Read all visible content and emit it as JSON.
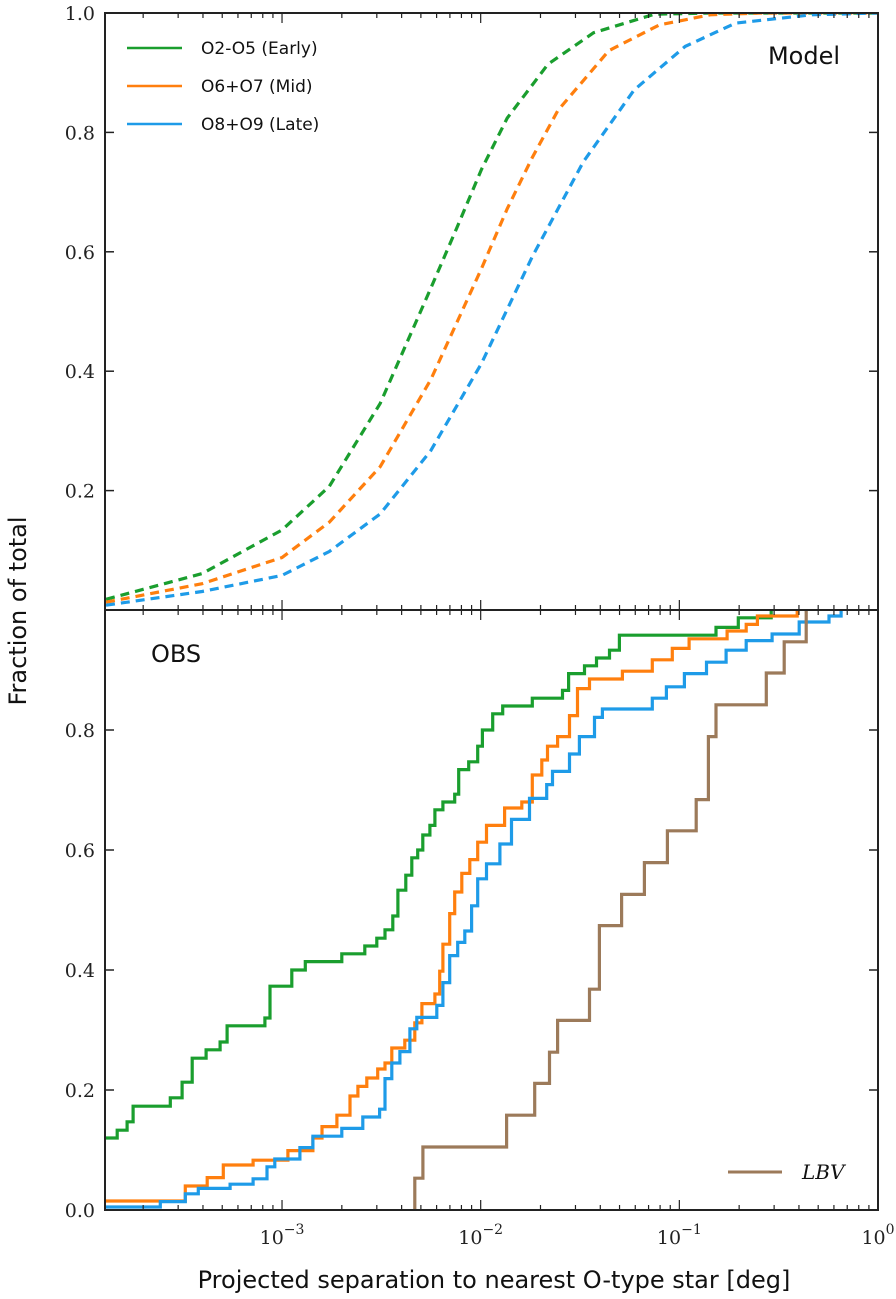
{
  "chart_data": [
    {
      "type": "line",
      "panel_label": "Model",
      "xscale": "log",
      "xlim": [
        0.0001285,
        1
      ],
      "ylim": [
        0,
        1
      ],
      "yticks": [
        0.2,
        0.4,
        0.6,
        0.8,
        1.0
      ],
      "ytick_labels": [
        "0.2",
        "0.4",
        "0.6",
        "0.8",
        "1.0"
      ],
      "line_style": "dashed",
      "legend_placement": "top-left",
      "series": [
        {
          "name": "O2-O5 (Early)",
          "color": "#1a9e2e",
          "points": [
            [
              0.00013,
              0.018
            ],
            [
              0.000396,
              0.061
            ],
            [
              0.001,
              0.134
            ],
            [
              0.00173,
              0.207
            ],
            [
              0.00312,
              0.346
            ],
            [
              0.00561,
              0.539
            ],
            [
              0.00754,
              0.638
            ],
            [
              0.0101,
              0.738
            ],
            [
              0.0136,
              0.824
            ],
            [
              0.0218,
              0.914
            ],
            [
              0.037,
              0.967
            ],
            [
              0.075,
              0.998
            ],
            [
              0.143,
              1.0
            ],
            [
              1.0,
              1.0
            ]
          ]
        },
        {
          "name": "O6+O7 (Mid)",
          "color": "#ff7f0e",
          "points": [
            [
              0.00013,
              0.013
            ],
            [
              0.000396,
              0.044
            ],
            [
              0.001,
              0.088
            ],
            [
              0.00173,
              0.147
            ],
            [
              0.00312,
              0.24
            ],
            [
              0.00561,
              0.386
            ],
            [
              0.0101,
              0.572
            ],
            [
              0.0136,
              0.672
            ],
            [
              0.0182,
              0.758
            ],
            [
              0.0245,
              0.837
            ],
            [
              0.0442,
              0.937
            ],
            [
              0.0794,
              0.98
            ],
            [
              0.143,
              0.997
            ],
            [
              0.258,
              1.0
            ],
            [
              1.0,
              1.0
            ]
          ]
        },
        {
          "name": "O8+O9 (Late)",
          "color": "#1e9be8",
          "points": [
            [
              0.00013,
              0.008
            ],
            [
              0.000396,
              0.031
            ],
            [
              0.001,
              0.058
            ],
            [
              0.00173,
              0.098
            ],
            [
              0.00312,
              0.161
            ],
            [
              0.00561,
              0.267
            ],
            [
              0.0101,
              0.413
            ],
            [
              0.0182,
              0.592
            ],
            [
              0.0329,
              0.751
            ],
            [
              0.0592,
              0.871
            ],
            [
              0.107,
              0.944
            ],
            [
              0.192,
              0.983
            ],
            [
              0.465,
              0.997
            ],
            [
              1.0,
              1.0
            ]
          ]
        }
      ]
    },
    {
      "type": "line",
      "step": "post",
      "panel_label": "OBS",
      "xscale": "log",
      "xlim": [
        0.0001285,
        1
      ],
      "ylim": [
        0,
        1
      ],
      "yticks": [
        0.0,
        0.2,
        0.4,
        0.6,
        0.8
      ],
      "ytick_labels": [
        "0.0",
        "0.2",
        "0.4",
        "0.6",
        "0.8"
      ],
      "legend_placement": "bottom-right",
      "series": [
        {
          "color": "#1a9e2e",
          "points": [
            [
              0.0001285,
              0.12
            ],
            [
              0.000148,
              0.133
            ],
            [
              0.000166,
              0.147
            ],
            [
              0.000178,
              0.173
            ],
            [
              0.000274,
              0.187
            ],
            [
              0.000314,
              0.213
            ],
            [
              0.000353,
              0.253
            ],
            [
              0.000415,
              0.267
            ],
            [
              0.000488,
              0.28
            ],
            [
              0.000529,
              0.307
            ],
            [
              0.00082,
              0.32
            ],
            [
              0.00087,
              0.373
            ],
            [
              0.00112,
              0.4
            ],
            [
              0.00131,
              0.414
            ],
            [
              0.002,
              0.427
            ],
            [
              0.00261,
              0.44
            ],
            [
              0.003,
              0.453
            ],
            [
              0.0033,
              0.467
            ],
            [
              0.00361,
              0.49
            ],
            [
              0.00383,
              0.533
            ],
            [
              0.0042,
              0.558
            ],
            [
              0.0045,
              0.587
            ],
            [
              0.00482,
              0.6
            ],
            [
              0.00511,
              0.625
            ],
            [
              0.00555,
              0.641
            ],
            [
              0.00588,
              0.667
            ],
            [
              0.00645,
              0.68
            ],
            [
              0.0074,
              0.693
            ],
            [
              0.00775,
              0.734
            ],
            [
              0.0087,
              0.747
            ],
            [
              0.00966,
              0.773
            ],
            [
              0.0102,
              0.8
            ],
            [
              0.0115,
              0.827
            ],
            [
              0.0129,
              0.84
            ],
            [
              0.0182,
              0.853
            ],
            [
              0.0258,
              0.866
            ],
            [
              0.0277,
              0.894
            ],
            [
              0.0333,
              0.907
            ],
            [
              0.0383,
              0.92
            ],
            [
              0.0445,
              0.933
            ],
            [
              0.0499,
              0.958
            ],
            [
              0.153,
              0.971
            ],
            [
              0.198,
              0.987
            ],
            [
              0.29,
              1.0
            ]
          ]
        },
        {
          "color": "#ff7f0e",
          "points": [
            [
              0.0001285,
              0.015
            ],
            [
              0.000326,
              0.04
            ],
            [
              0.00042,
              0.054
            ],
            [
              0.000506,
              0.075
            ],
            [
              0.000715,
              0.083
            ],
            [
              0.00107,
              0.099
            ],
            [
              0.00143,
              0.12
            ],
            [
              0.00159,
              0.139
            ],
            [
              0.00189,
              0.158
            ],
            [
              0.0022,
              0.19
            ],
            [
              0.00241,
              0.206
            ],
            [
              0.00267,
              0.22
            ],
            [
              0.00303,
              0.235
            ],
            [
              0.0033,
              0.245
            ],
            [
              0.00357,
              0.27
            ],
            [
              0.00415,
              0.283
            ],
            [
              0.00466,
              0.312
            ],
            [
              0.00506,
              0.344
            ],
            [
              0.00588,
              0.36
            ],
            [
              0.00622,
              0.398
            ],
            [
              0.00645,
              0.443
            ],
            [
              0.00698,
              0.494
            ],
            [
              0.0074,
              0.53
            ],
            [
              0.00803,
              0.561
            ],
            [
              0.00881,
              0.584
            ],
            [
              0.00966,
              0.613
            ],
            [
              0.0107,
              0.641
            ],
            [
              0.0132,
              0.67
            ],
            [
              0.0161,
              0.68
            ],
            [
              0.0182,
              0.725
            ],
            [
              0.0203,
              0.75
            ],
            [
              0.0217,
              0.773
            ],
            [
              0.0244,
              0.789
            ],
            [
              0.028,
              0.824
            ],
            [
              0.0307,
              0.869
            ],
            [
              0.0353,
              0.885
            ],
            [
              0.0517,
              0.898
            ],
            [
              0.0731,
              0.917
            ],
            [
              0.0922,
              0.936
            ],
            [
              0.112,
              0.952
            ],
            [
              0.174,
              0.965
            ],
            [
              0.217,
              0.976
            ],
            [
              0.247,
              0.99
            ],
            [
              0.392,
              1.0
            ]
          ]
        },
        {
          "color": "#1e9be8",
          "points": [
            [
              0.0001285,
              0.005
            ],
            [
              0.000244,
              0.014
            ],
            [
              0.000326,
              0.027
            ],
            [
              0.000379,
              0.036
            ],
            [
              0.000548,
              0.043
            ],
            [
              0.000715,
              0.052
            ],
            [
              0.00084,
              0.072
            ],
            [
              0.00092,
              0.085
            ],
            [
              0.00123,
              0.104
            ],
            [
              0.00143,
              0.123
            ],
            [
              0.002,
              0.136
            ],
            [
              0.00255,
              0.155
            ],
            [
              0.0031,
              0.168
            ],
            [
              0.0033,
              0.219
            ],
            [
              0.00357,
              0.245
            ],
            [
              0.00392,
              0.264
            ],
            [
              0.0044,
              0.302
            ],
            [
              0.00477,
              0.321
            ],
            [
              0.00601,
              0.341
            ],
            [
              0.00645,
              0.379
            ],
            [
              0.00698,
              0.424
            ],
            [
              0.00766,
              0.446
            ],
            [
              0.00832,
              0.465
            ],
            [
              0.009,
              0.507
            ],
            [
              0.00966,
              0.552
            ],
            [
              0.0107,
              0.577
            ],
            [
              0.0125,
              0.61
            ],
            [
              0.0143,
              0.651
            ],
            [
              0.0176,
              0.686
            ],
            [
              0.0215,
              0.709
            ],
            [
              0.023,
              0.731
            ],
            [
              0.028,
              0.76
            ],
            [
              0.0314,
              0.789
            ],
            [
              0.0374,
              0.821
            ],
            [
              0.041,
              0.835
            ],
            [
              0.0731,
              0.853
            ],
            [
              0.0861,
              0.872
            ],
            [
              0.106,
              0.894
            ],
            [
              0.137,
              0.913
            ],
            [
              0.172,
              0.933
            ],
            [
              0.217,
              0.949
            ],
            [
              0.293,
              0.96
            ],
            [
              0.401,
              0.98
            ],
            [
              0.567,
              0.99
            ],
            [
              0.652,
              1.0
            ]
          ]
        },
        {
          "name": "LBV",
          "color": "#9c7a5a",
          "points": [
            [
              0.00466,
              0.0
            ],
            [
              0.00466,
              0.053
            ],
            [
              0.00512,
              0.105
            ],
            [
              0.0135,
              0.158
            ],
            [
              0.0187,
              0.211
            ],
            [
              0.0222,
              0.263
            ],
            [
              0.0244,
              0.316
            ],
            [
              0.0353,
              0.368
            ],
            [
              0.0396,
              0.474
            ],
            [
              0.0512,
              0.526
            ],
            [
              0.0667,
              0.579
            ],
            [
              0.0871,
              0.632
            ],
            [
              0.1216,
              0.684
            ],
            [
              0.14,
              0.789
            ],
            [
              0.153,
              0.842
            ],
            [
              0.274,
              0.895
            ],
            [
              0.337,
              0.947
            ],
            [
              0.435,
              1.0
            ]
          ]
        }
      ]
    }
  ],
  "shared": {
    "ylabel": "Fraction of total",
    "xlabel": "Projected separation to nearest O-type star [deg]",
    "xticks": [
      0.001,
      0.01,
      0.1,
      1
    ],
    "xtick_labels": [
      {
        "base": "10",
        "exp": "−3"
      },
      {
        "base": "10",
        "exp": "−2"
      },
      {
        "base": "10",
        "exp": "−1"
      },
      {
        "base": "10",
        "exp": "0"
      }
    ]
  }
}
